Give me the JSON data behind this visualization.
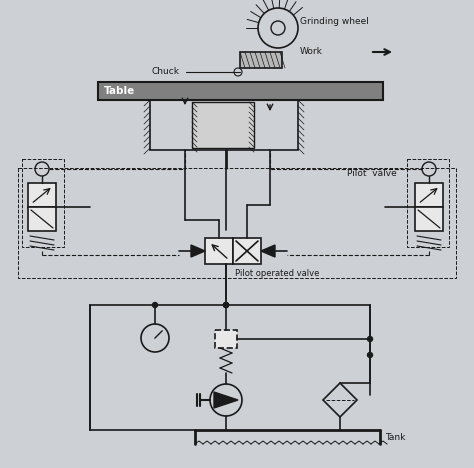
{
  "bg_color": "#cdd0d4",
  "line_color": "#1a1a1a",
  "labels": {
    "grinding_wheel": "Grinding wheel",
    "work": "Work",
    "chuck": "Chuck",
    "table": "Table",
    "pilot_valve": "Pilot  valve",
    "pilot_operated_valve": "Pilot operated valve",
    "tank": "Tank"
  },
  "figsize": [
    4.74,
    4.68
  ],
  "dpi": 100
}
